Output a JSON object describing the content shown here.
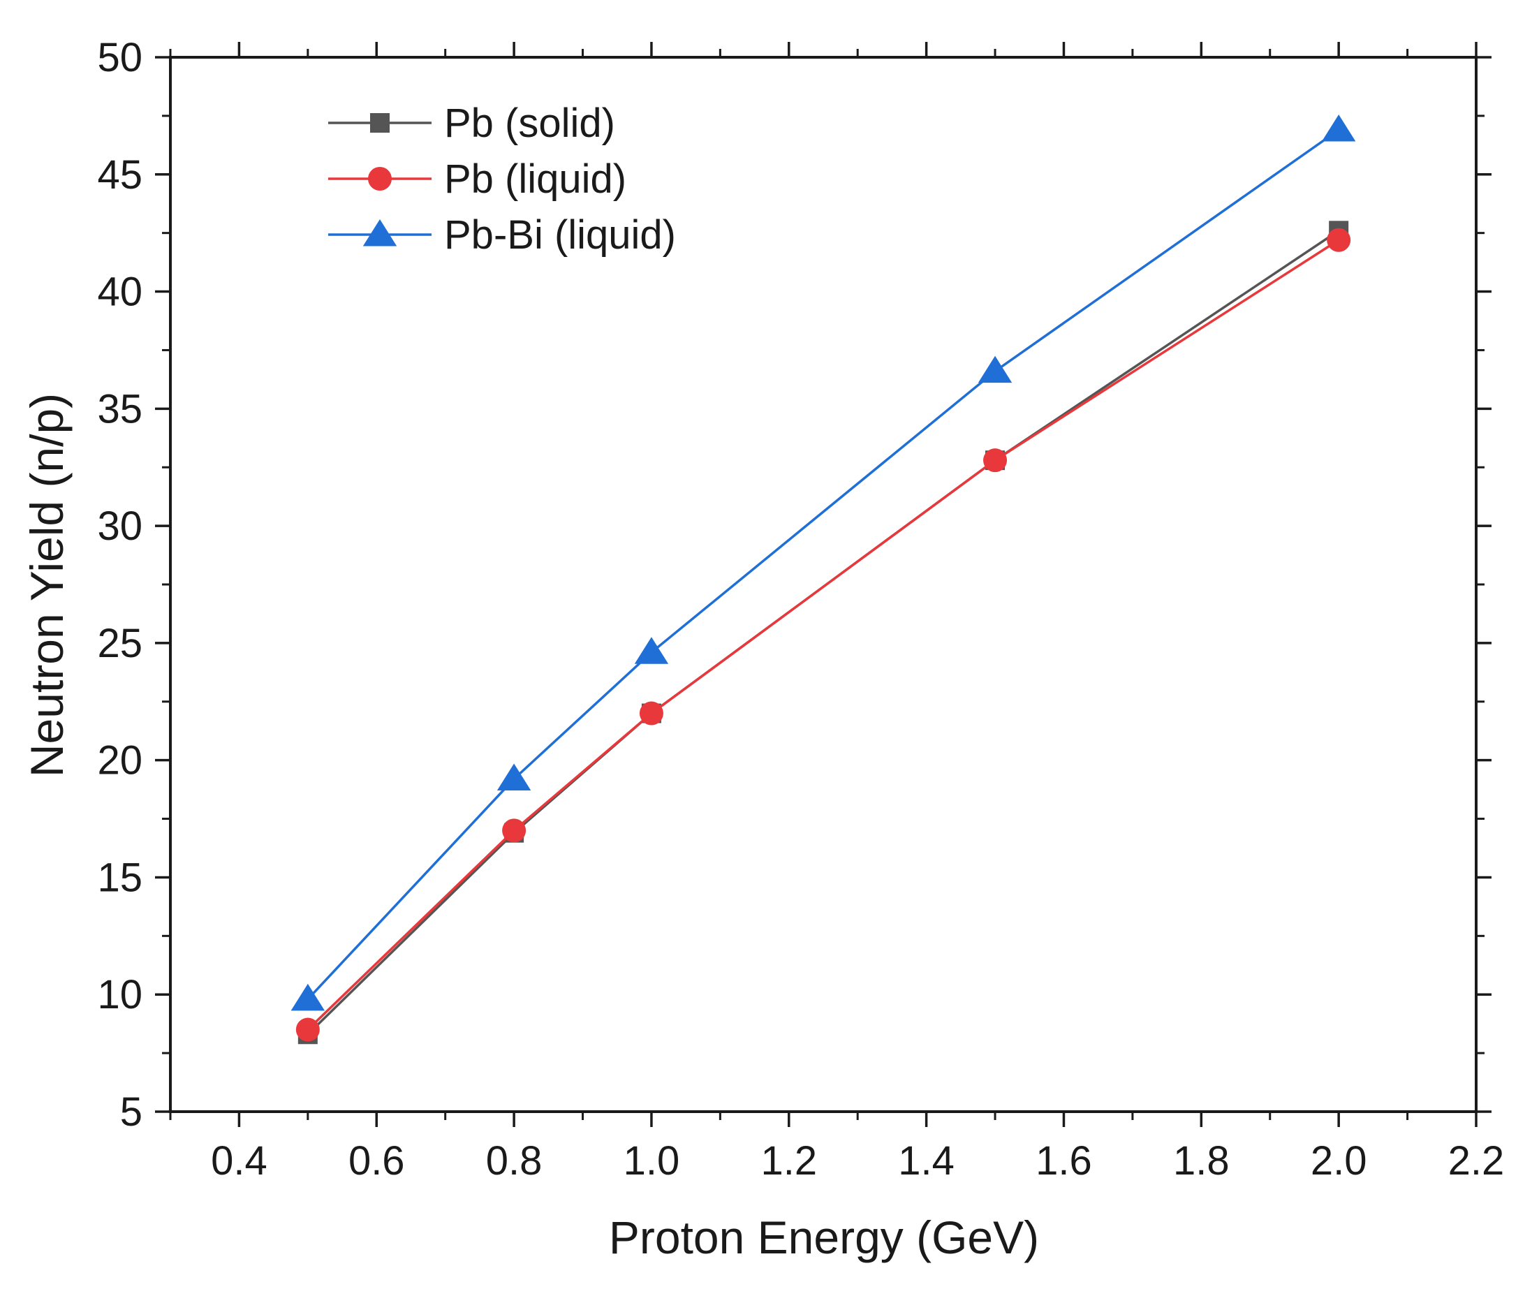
{
  "chart_data": {
    "type": "line",
    "title": "",
    "xlabel": "Proton Energy (GeV)",
    "ylabel": "Neutron Yield (n/p)",
    "xlim": [
      0.3,
      2.2
    ],
    "ylim": [
      5,
      50
    ],
    "x": [
      0.5,
      0.8,
      1.0,
      1.5,
      2.0
    ],
    "x_ticks": [
      0.4,
      0.6,
      0.8,
      1.0,
      1.2,
      1.4,
      1.6,
      1.8,
      2.0,
      2.2
    ],
    "x_tick_labels": [
      "0.4",
      "0.6",
      "0.8",
      "1.0",
      "1.2",
      "1.4",
      "1.6",
      "1.8",
      "2.0",
      "2.2"
    ],
    "y_ticks": [
      5,
      10,
      15,
      20,
      25,
      30,
      35,
      40,
      45,
      50
    ],
    "y_tick_labels": [
      "5",
      "10",
      "15",
      "20",
      "25",
      "30",
      "35",
      "40",
      "45",
      "50"
    ],
    "grid": false,
    "legend_position": "top-left",
    "series": [
      {
        "name": "Pb (solid)",
        "values": [
          8.3,
          16.9,
          22.0,
          32.8,
          42.6
        ],
        "color": "#555555",
        "marker": "square"
      },
      {
        "name": "Pb (liquid)",
        "values": [
          8.5,
          17.0,
          22.0,
          32.8,
          42.2
        ],
        "color": "#e8383b",
        "marker": "circle"
      },
      {
        "name": "Pb-Bi (liquid)",
        "values": [
          9.8,
          19.2,
          24.6,
          36.6,
          46.9
        ],
        "color": "#1f6fd6",
        "marker": "triangle"
      }
    ]
  }
}
